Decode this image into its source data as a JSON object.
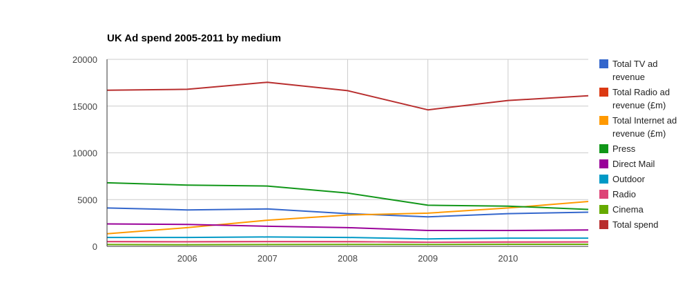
{
  "chart_data": {
    "type": "line",
    "title": "UK Ad spend 2005-2011 by medium",
    "xlabel": "",
    "ylabel": "",
    "x": [
      2005,
      2006,
      2007,
      2008,
      2009,
      2010,
      2011
    ],
    "x_tick_labels": [
      "2006",
      "2007",
      "2008",
      "2009",
      "2010"
    ],
    "x_ticks": [
      2006,
      2007,
      2008,
      2009,
      2010
    ],
    "ylim": [
      0,
      20000
    ],
    "y_ticks": [
      0,
      5000,
      10000,
      15000,
      20000
    ],
    "y_tick_labels": [
      "0",
      "5000",
      "10000",
      "15000",
      "20000"
    ],
    "grid": true,
    "legend_position": "right",
    "series": [
      {
        "name": "Total TV ad revenue",
        "color": "#3366cc",
        "values": [
          4100,
          3900,
          4000,
          3500,
          3150,
          3500,
          3650
        ]
      },
      {
        "name": "Total Radio ad revenue (£m)",
        "color": "#dc3912",
        "values": [
          510,
          490,
          510,
          500,
          440,
          460,
          470
        ]
      },
      {
        "name": "Total Internet ad revenue (£m)",
        "color": "#ff9900",
        "values": [
          1350,
          2000,
          2800,
          3350,
          3550,
          4100,
          4800
        ]
      },
      {
        "name": "Press",
        "color": "#109618",
        "values": [
          6800,
          6550,
          6450,
          5700,
          4400,
          4300,
          3950
        ]
      },
      {
        "name": "Direct Mail",
        "color": "#990099",
        "values": [
          2400,
          2350,
          2150,
          2000,
          1700,
          1700,
          1750
        ]
      },
      {
        "name": "Outdoor",
        "color": "#0099c6",
        "values": [
          950,
          950,
          1000,
          950,
          800,
          880,
          880
        ]
      },
      {
        "name": "Radio",
        "color": "#dd4477",
        "values": [
          510,
          490,
          510,
          500,
          440,
          460,
          470
        ]
      },
      {
        "name": "Cinema",
        "color": "#66aa00",
        "values": [
          190,
          180,
          190,
          210,
          200,
          220,
          220
        ]
      },
      {
        "name": "Total spend",
        "color": "#b82e2e",
        "values": [
          16700,
          16800,
          17550,
          16650,
          14600,
          15600,
          16100
        ]
      }
    ]
  }
}
